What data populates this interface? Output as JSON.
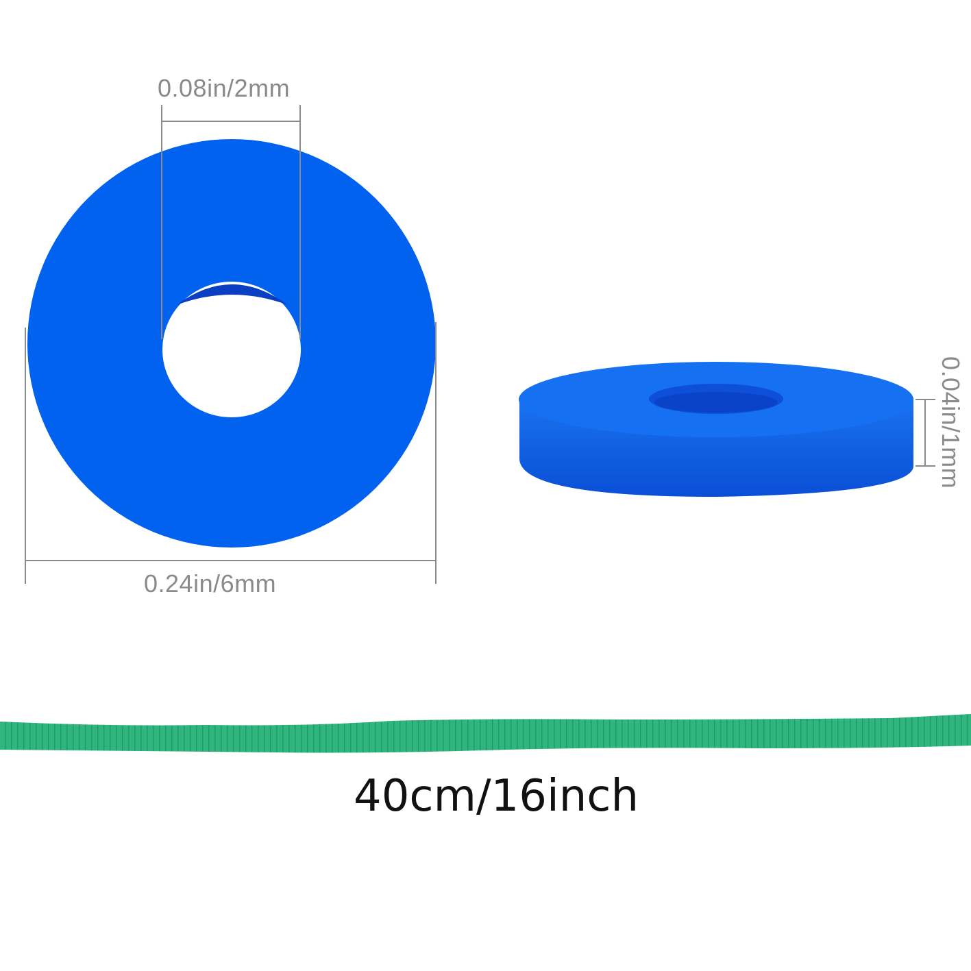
{
  "labels": {
    "inner_diameter": "0.08in/2mm",
    "outer_diameter": "0.24in/6mm",
    "thickness": "0.04in/1mm",
    "strand_length": "40cm/16inch"
  },
  "colors": {
    "bead_blue": "#0062ee",
    "bead_side_blue": "#0a58e0",
    "strand_green": "#2fb57e",
    "dimension_line": "#8a8a8a"
  }
}
